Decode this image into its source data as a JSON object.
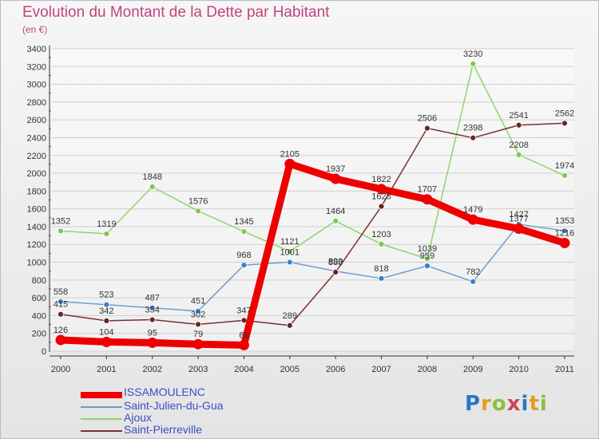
{
  "title": "Evolution du Montant de la Dette par Habitant",
  "subtitle": "(en €)",
  "logo": {
    "text": "Proxiti",
    "colors": [
      "#2a74c4",
      "#e0a020",
      "#8ac040",
      "#d04060",
      "#2a74c4",
      "#e0a020",
      "#8ac040"
    ]
  },
  "chart_data": {
    "type": "line",
    "title": "Evolution du Montant de la Dette par Habitant",
    "subtitle": "(en €)",
    "categories": [
      "2000",
      "2001",
      "2002",
      "2003",
      "2004",
      "2005",
      "2006",
      "2007",
      "2008",
      "2009",
      "2010",
      "2011"
    ],
    "yticks": [
      0,
      200,
      400,
      600,
      800,
      1000,
      1200,
      1400,
      1600,
      1800,
      2000,
      2200,
      2400,
      2600,
      2800,
      3000,
      3200,
      3400
    ],
    "ylim": [
      0,
      3400
    ],
    "legend_position": "bottom-left",
    "series": [
      {
        "name": "Saint-Julien-du-Gua",
        "color": "#6c9ccf",
        "dot": "#3a7fd0",
        "values": [
          558,
          523,
          487,
          451,
          968,
          1001,
          899,
          818,
          959,
          782,
          1427,
          1353
        ],
        "labels": [
          "558",
          "523",
          "487",
          "451",
          "968",
          "1001",
          "899",
          "818",
          "959",
          "782",
          "1427",
          "1353"
        ]
      },
      {
        "name": "Ajoux",
        "color": "#8fd46a",
        "dot": "#7cc84e",
        "values": [
          1352,
          1319,
          1848,
          1576,
          1345,
          1121,
          1464,
          1203,
          1039,
          3230,
          2208,
          1974
        ],
        "labels": [
          "1352",
          "1319",
          "1848",
          "1576",
          "1345",
          "1121",
          "1464",
          "1203",
          "1039",
          "3230",
          "2208",
          "1974"
        ]
      },
      {
        "name": "Saint-Pierreville",
        "color": "#7a3030",
        "dot": "#6a2424",
        "values": [
          415,
          342,
          354,
          302,
          347,
          289,
          888,
          1628,
          2506,
          2398,
          2541,
          2562
        ],
        "labels": [
          "415",
          "342",
          "354",
          "302",
          "347",
          "289",
          "888",
          "1628",
          "2506",
          "2398",
          "2541",
          "2562"
        ]
      },
      {
        "name": "ISSAMOULENC",
        "color": "#ee0000",
        "dot": "#ee0000",
        "thick": true,
        "values": [
          126,
          104,
          95,
          79,
          68,
          2105,
          1937,
          1822,
          1707,
          1479,
          1377,
          1216
        ],
        "labels": [
          "126",
          "104",
          "95",
          "79",
          "68",
          "2105",
          "1937",
          "1822",
          "1707",
          "1479",
          "1377",
          "1216"
        ]
      }
    ],
    "legend": [
      "ISSAMOULENC",
      "Saint-Julien-du-Gua",
      "Ajoux",
      "Saint-Pierreville"
    ]
  }
}
